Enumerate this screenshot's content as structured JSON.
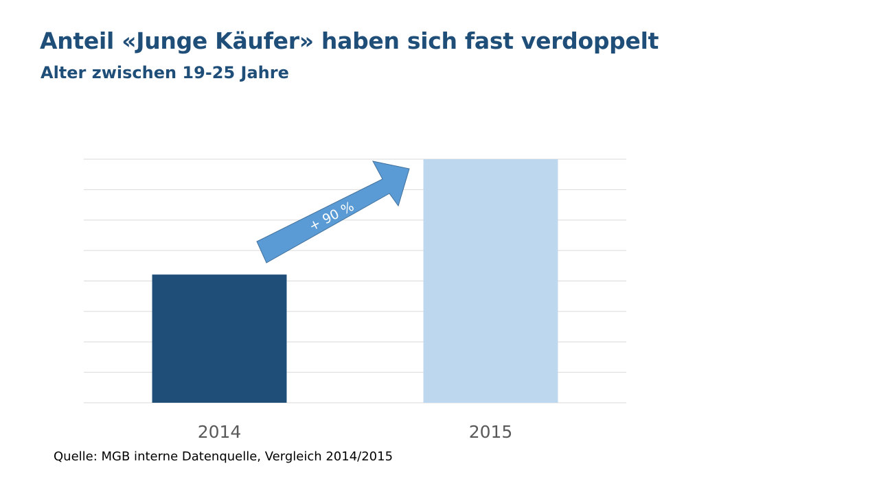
{
  "title": "Anteil «Junge Käufer» haben sich fast verdoppelt",
  "subtitle": "Alter zwischen 19-25 Jahre",
  "source": "Quelle: MGB interne Datenquelle, Vergleich 2014/2015",
  "annotation": "+ 90 %",
  "colors": {
    "bar_2014": "#1f4e79",
    "bar_2015": "#bdd7ee",
    "arrow": "#5b9bd5",
    "grid": "#d9d9d9"
  },
  "chart_data": {
    "type": "bar",
    "categories": [
      "2014",
      "2015"
    ],
    "values": [
      100,
      190
    ],
    "ylim": [
      0,
      190
    ],
    "grid": true,
    "gridlines": 8,
    "legend": "none",
    "annotation": "+ 90 %"
  }
}
